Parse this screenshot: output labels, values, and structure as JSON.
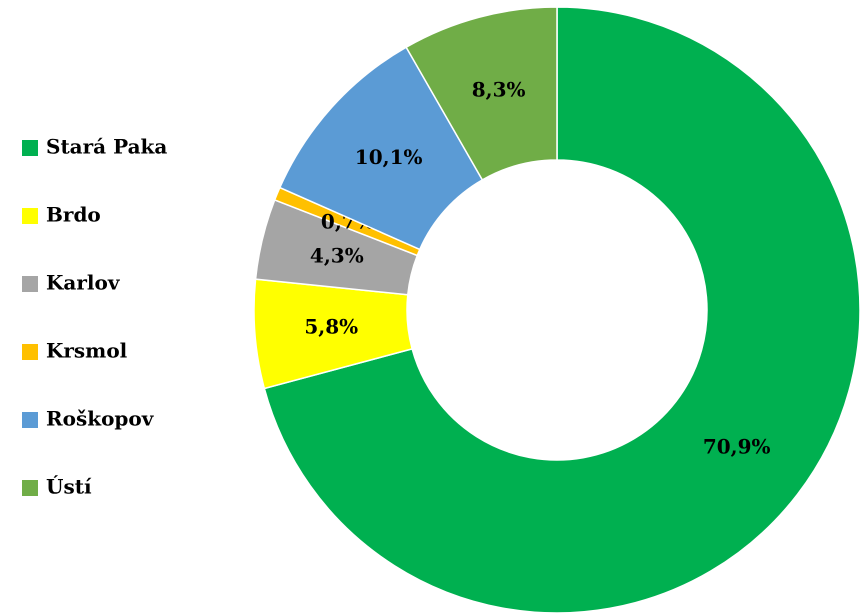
{
  "chart_data": {
    "type": "donut",
    "categories": [
      "Stará Paka",
      "Brdo",
      "Karlov",
      "Krsmol",
      "Roškopov",
      "Ústí"
    ],
    "values": [
      70.9,
      5.8,
      4.3,
      0.7,
      10.1,
      8.3
    ],
    "value_labels": [
      "70,9%",
      "5,8%",
      "4,3%",
      "0,7%",
      "10,1%",
      "8,3%"
    ],
    "colors": [
      "#00b050",
      "#ffff00",
      "#a5a5a5",
      "#ffc000",
      "#5b9bd5",
      "#70ad47"
    ],
    "legend": "left"
  }
}
